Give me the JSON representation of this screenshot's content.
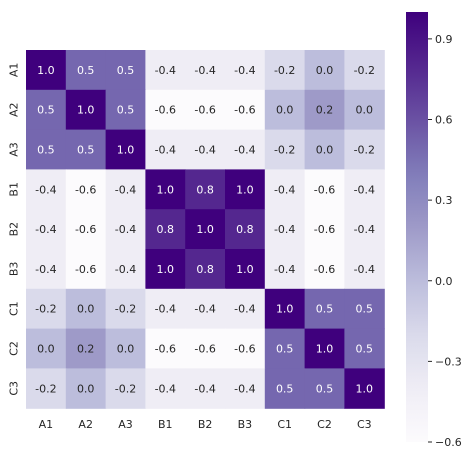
{
  "chart_data": {
    "type": "heatmap",
    "x_labels": [
      "A1",
      "A2",
      "A3",
      "B1",
      "B2",
      "B3",
      "C1",
      "C2",
      "C3"
    ],
    "y_labels": [
      "A1",
      "A2",
      "A3",
      "B1",
      "B2",
      "B3",
      "C1",
      "C2",
      "C3"
    ],
    "values": [
      [
        1.0,
        0.5,
        0.5,
        -0.4,
        -0.4,
        -0.4,
        -0.2,
        0.0,
        -0.2
      ],
      [
        0.5,
        1.0,
        0.5,
        -0.6,
        -0.6,
        -0.6,
        0.0,
        0.2,
        0.0
      ],
      [
        0.5,
        0.5,
        1.0,
        -0.4,
        -0.4,
        -0.4,
        -0.2,
        0.0,
        -0.2
      ],
      [
        -0.4,
        -0.6,
        -0.4,
        1.0,
        0.8,
        1.0,
        -0.4,
        -0.6,
        -0.4
      ],
      [
        -0.4,
        -0.6,
        -0.4,
        0.8,
        1.0,
        0.8,
        -0.4,
        -0.6,
        -0.4
      ],
      [
        -0.4,
        -0.6,
        -0.4,
        1.0,
        0.8,
        1.0,
        -0.4,
        -0.6,
        -0.4
      ],
      [
        -0.2,
        0.0,
        -0.2,
        -0.4,
        -0.4,
        -0.4,
        1.0,
        0.5,
        0.5
      ],
      [
        0.0,
        0.2,
        0.0,
        -0.6,
        -0.6,
        -0.6,
        0.5,
        1.0,
        0.5
      ],
      [
        -0.2,
        0.0,
        -0.2,
        -0.4,
        -0.4,
        -0.4,
        0.5,
        0.5,
        1.0
      ]
    ],
    "annotation_format": "0.0",
    "colormap": "Purples",
    "color_range": [
      -0.6,
      1.0
    ],
    "colorbar": {
      "ticks": [
        -0.6,
        -0.3,
        0.0,
        0.3,
        0.6,
        0.9
      ],
      "tick_labels": [
        "−0.6",
        "−0.3",
        "0.0",
        "0.3",
        "0.6",
        "0.9"
      ]
    },
    "colors": {
      "low": "#fcfbfd",
      "high": "#3f007d",
      "text_light": "#ffffff",
      "text_dark": "#262626",
      "tick_text": "#262626"
    },
    "grid": false,
    "legend": "colorbar-right"
  }
}
